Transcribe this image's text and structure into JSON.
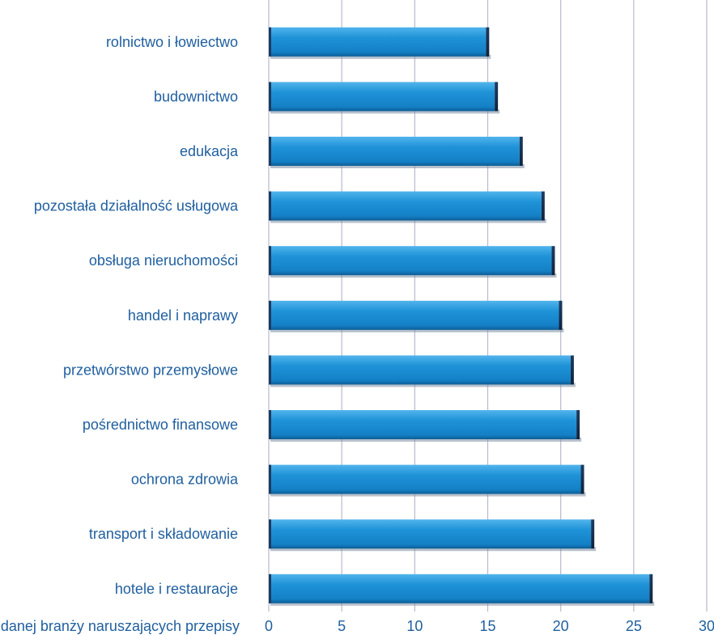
{
  "chart_data": {
    "type": "bar",
    "orientation": "horizontal",
    "categories": [
      "rolnictwo i łowiectwo",
      "budownictwo",
      "edukacja",
      "pozostała działalność usługowa",
      "obsługa nieruchomości",
      "handel i naprawy",
      "przetwórstwo przemysłowe",
      "pośrednictwo finansowe",
      "ochrona zdrowia",
      "transport i składowanie",
      "hotele i restauracje"
    ],
    "values": [
      15.1,
      15.7,
      17.4,
      18.9,
      19.6,
      20.1,
      20.9,
      21.3,
      21.6,
      22.3,
      26.3
    ],
    "xlabel": "Odsetek pracodawców danej branży naruszających przepisy",
    "xlim": [
      0,
      30
    ],
    "xticks": [
      "0",
      "5",
      "10",
      "15",
      "20",
      "25",
      "30"
    ],
    "grid": "vertical",
    "legend": "none",
    "colors": {
      "bar": "#1a8fd6",
      "bar_light": "#3aa6e6",
      "bar_dark": "#0d5d96",
      "bar_shadow": "#1a2d4a",
      "label": "#1f5f9f",
      "grid": "#b8b9cc"
    }
  }
}
